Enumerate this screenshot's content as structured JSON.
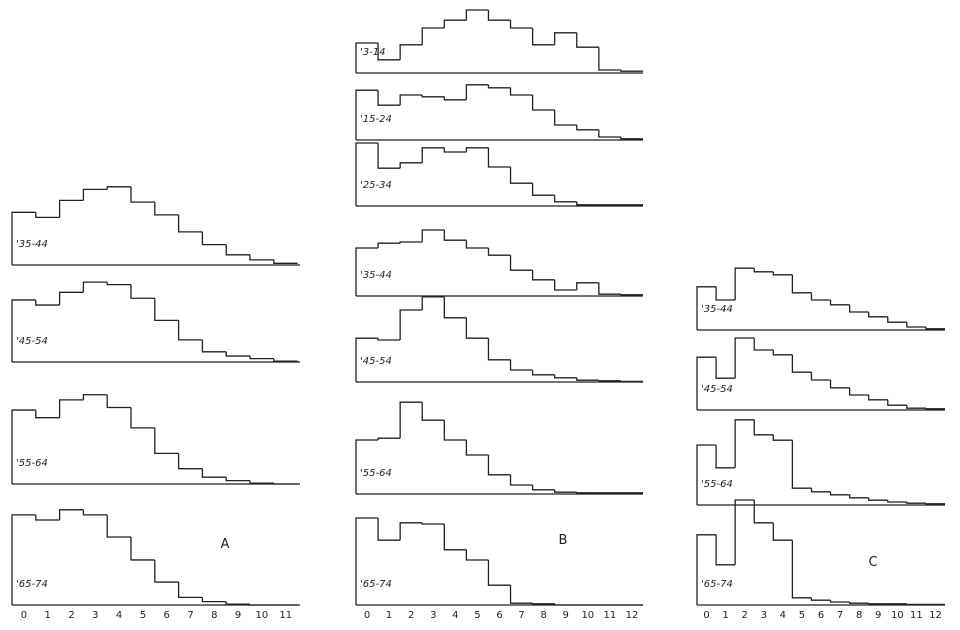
{
  "chart_data": [
    {
      "type": "histogram",
      "title": "A",
      "color": "#222222",
      "bins": [
        -0.5,
        0.5,
        1.5,
        2.5,
        3.5,
        4.5,
        5.5,
        6.5,
        7.5,
        8.5,
        9.5,
        10.5,
        11.5
      ],
      "xlim": [
        -0.5,
        11.6
      ],
      "xticks": [
        0,
        1,
        2,
        3,
        4,
        5,
        6,
        7,
        8,
        9,
        10,
        11
      ],
      "ylim": [
        0,
        12
      ],
      "series": [
        {
          "name": "'35-44",
          "values": [
            6.2,
            5.6,
            7.6,
            8.9,
            9.2,
            7.4,
            5.9,
            3.9,
            2.4,
            1.2,
            0.6,
            0.2
          ]
        },
        {
          "name": "'45-54",
          "values": [
            7.3,
            6.7,
            8.2,
            9.4,
            9.1,
            7.5,
            4.9,
            2.6,
            1.2,
            0.7,
            0.4,
            0.1
          ]
        },
        {
          "name": "'55-64",
          "values": [
            8.7,
            7.8,
            9.9,
            10.5,
            9.0,
            6.6,
            3.6,
            1.8,
            0.8,
            0.4,
            0.1,
            0
          ]
        },
        {
          "name": "'65-74",
          "values": [
            10.6,
            10.0,
            11.2,
            10.6,
            8.0,
            5.3,
            2.7,
            0.9,
            0.4,
            0.1,
            0,
            0
          ]
        }
      ]
    },
    {
      "type": "histogram",
      "title": "B",
      "color": "#222222",
      "bins": [
        -0.5,
        0.5,
        1.5,
        2.5,
        3.5,
        4.5,
        5.5,
        6.5,
        7.5,
        8.5,
        9.5,
        10.5,
        11.5,
        12.5
      ],
      "xlim": [
        -0.5,
        12.5
      ],
      "xticks": [
        0,
        1,
        2,
        3,
        4,
        5,
        6,
        7,
        8,
        9,
        10,
        11,
        12
      ],
      "ylim": [
        0,
        16
      ],
      "series": [
        {
          "name": "'3-14",
          "values": [
            5.0,
            2.2,
            4.7,
            7.5,
            8.8,
            10.5,
            8.8,
            7.5,
            4.7,
            6.7,
            4.3,
            0.5,
            0.3
          ]
        },
        {
          "name": "'15-24",
          "values": [
            8.3,
            5.8,
            7.5,
            7.2,
            6.7,
            9.2,
            8.7,
            7.5,
            5.0,
            2.5,
            1.7,
            0.5,
            0.2
          ]
        },
        {
          "name": "'25-34",
          "values": [
            10.5,
            6.3,
            7.2,
            9.7,
            9.0,
            9.7,
            6.5,
            3.8,
            1.8,
            0.7,
            0.2,
            0.2,
            0.2
          ]
        },
        {
          "name": "'35-44",
          "values": [
            8.0,
            8.8,
            9.0,
            11.0,
            9.3,
            8.0,
            6.8,
            4.3,
            2.7,
            1.0,
            2.2,
            0.3,
            0.2
          ]
        },
        {
          "name": "'45-54",
          "values": [
            7.3,
            7.0,
            12.0,
            14.2,
            10.7,
            7.3,
            3.7,
            2.0,
            1.2,
            0.7,
            0.3,
            0.2,
            0.1
          ]
        },
        {
          "name": "'55-64",
          "values": [
            9.0,
            9.3,
            15.3,
            12.3,
            9.0,
            6.5,
            3.2,
            1.5,
            0.7,
            0.3,
            0.2,
            0.2,
            0.2
          ]
        },
        {
          "name": "'65-74",
          "values": [
            14.5,
            10.8,
            13.7,
            13.5,
            9.2,
            7.5,
            3.3,
            0.3,
            0.2,
            0,
            0,
            0,
            0
          ]
        }
      ]
    },
    {
      "type": "histogram",
      "title": "C",
      "color": "#222222",
      "bins": [
        -0.5,
        0.5,
        1.5,
        2.5,
        3.5,
        4.5,
        5.5,
        6.5,
        7.5,
        8.5,
        9.5,
        10.5,
        11.5,
        12.5
      ],
      "xlim": [
        -0.5,
        12.5
      ],
      "xticks": [
        0,
        1,
        2,
        3,
        4,
        5,
        6,
        7,
        8,
        9,
        10,
        11,
        12
      ],
      "ylim": [
        0,
        18
      ],
      "series": [
        {
          "name": "'35-44",
          "values": [
            7.2,
            5.0,
            10.3,
            9.7,
            9.2,
            6.2,
            5.0,
            4.2,
            3.0,
            2.2,
            1.3,
            0.5,
            0.2
          ]
        },
        {
          "name": "'45-54",
          "values": [
            8.8,
            5.3,
            12.0,
            10.0,
            9.2,
            6.3,
            5.0,
            3.7,
            2.5,
            1.7,
            0.8,
            0.3,
            0.2
          ]
        },
        {
          "name": "'55-64",
          "values": [
            10.0,
            6.2,
            14.2,
            11.7,
            10.8,
            2.8,
            2.2,
            1.7,
            1.2,
            0.8,
            0.5,
            0.3,
            0.2
          ]
        },
        {
          "name": "'65-74",
          "values": [
            11.7,
            6.7,
            17.5,
            13.7,
            10.8,
            1.2,
            0.8,
            0.5,
            0.3,
            0.2,
            0.2,
            0.1,
            0.1
          ]
        }
      ]
    }
  ]
}
